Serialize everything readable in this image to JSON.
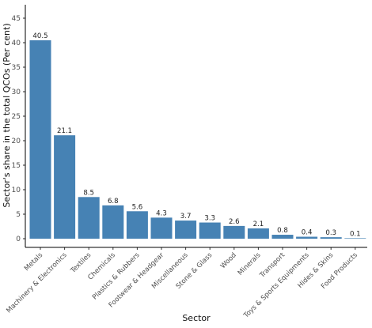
{
  "chart_data": {
    "type": "bar",
    "title": "",
    "xlabel": "Sector",
    "ylabel": "Sector's share in the total QCOs (Per cent)",
    "ylim": [
      0,
      47
    ],
    "yticks": [
      0,
      5,
      10,
      15,
      20,
      25,
      30,
      35,
      40,
      45
    ],
    "grid": false,
    "bar_color": "#4682b4",
    "categories": [
      "Metals",
      "Machinery & Electronics",
      "Textiles",
      "Chemicals",
      "Plastics & Rubbers",
      "Footwear & Headgear",
      "Miscellaneous",
      "Stone & Glass",
      "Wood",
      "Minerals",
      "Transport",
      "Toys & Sports Equipments",
      "Hides & Skins",
      "Food Products"
    ],
    "values": [
      40.5,
      21.1,
      8.5,
      6.8,
      5.6,
      4.3,
      3.7,
      3.3,
      2.6,
      2.1,
      0.8,
      0.4,
      0.3,
      0.1
    ],
    "value_labels": [
      "40.5",
      "21.1",
      "8.5",
      "6.8",
      "5.6",
      "4.3",
      "3.7",
      "3.3",
      "2.6",
      "2.1",
      "0.8",
      "0.4",
      "0.3",
      "0.1"
    ]
  }
}
